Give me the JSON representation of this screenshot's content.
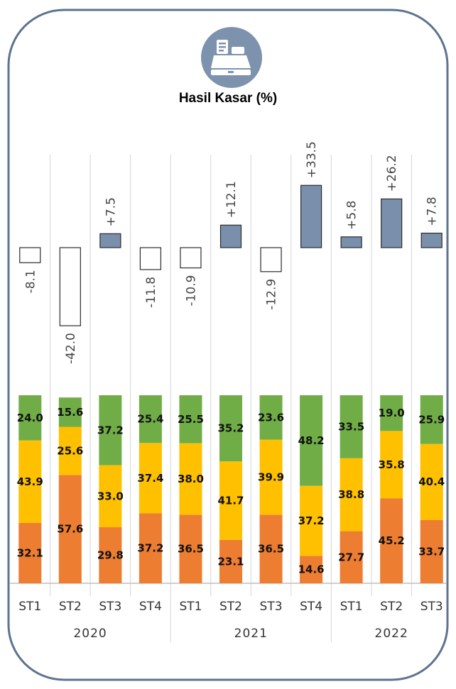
{
  "title": "Hasil Kasar (%)",
  "icon": "cash-register-icon",
  "colors": {
    "card_border": "#5d7391",
    "icon_bg": "#7d92ad",
    "positive": "#7a8fac",
    "negative": "#ffffff",
    "green": "#70ad47",
    "yellow": "#ffc000",
    "orange": "#ed7d31",
    "grid": "#d4d4d4"
  },
  "chart_data": {
    "type": "bar",
    "categories": [
      "ST1",
      "ST2",
      "ST3",
      "ST4",
      "ST1",
      "ST2",
      "ST3",
      "ST4",
      "ST1",
      "ST2",
      "ST3"
    ],
    "groups": [
      {
        "label": "2020",
        "span": 4
      },
      {
        "label": "2021",
        "span": 4
      },
      {
        "label": "2022",
        "span": 3
      }
    ],
    "change": {
      "values": [
        -8.1,
        -42.0,
        7.5,
        -11.8,
        -10.9,
        12.1,
        -12.9,
        33.5,
        5.8,
        26.2,
        7.8
      ],
      "labels": [
        "-8.1",
        "-42.0",
        "+7.5",
        "-11.8",
        "-10.9",
        "+12.1",
        "-12.9",
        "+33.5",
        "+5.8",
        "+26.2",
        "+7.8"
      ]
    },
    "stacked": {
      "series": [
        {
          "color": "orange",
          "values": [
            32.1,
            57.6,
            29.8,
            37.2,
            36.5,
            23.1,
            36.5,
            14.6,
            27.7,
            45.2,
            33.7
          ]
        },
        {
          "color": "yellow",
          "values": [
            43.9,
            25.6,
            33.0,
            37.4,
            38.0,
            41.7,
            39.9,
            37.2,
            38.8,
            35.8,
            40.4
          ]
        },
        {
          "color": "green",
          "values": [
            24.0,
            15.6,
            37.2,
            25.4,
            25.5,
            35.2,
            23.6,
            48.2,
            33.5,
            19.0,
            25.9
          ]
        }
      ]
    }
  }
}
